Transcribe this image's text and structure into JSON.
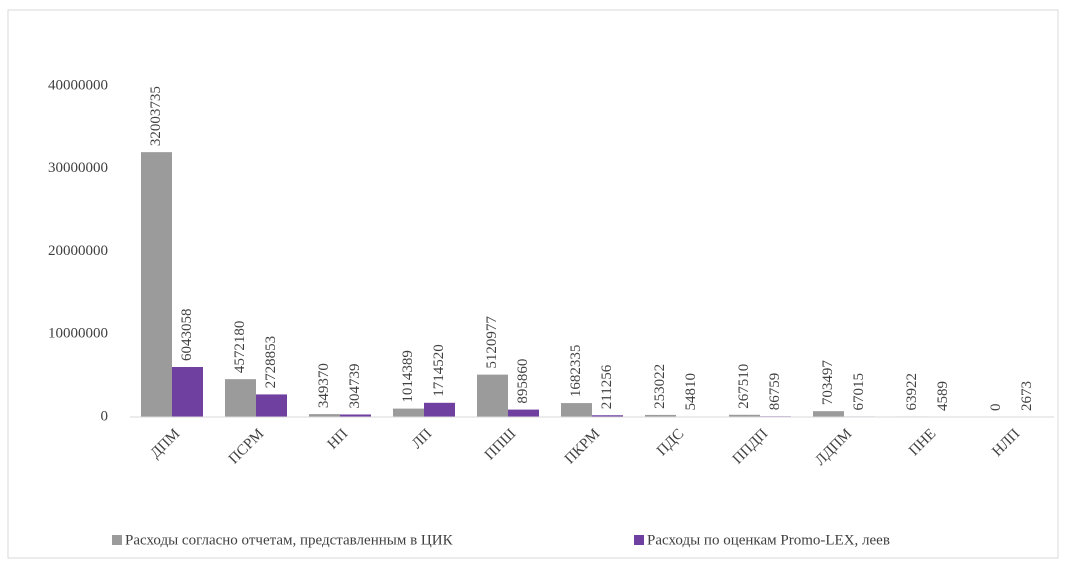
{
  "chart_data": {
    "type": "bar",
    "categories": [
      "ДПМ",
      "ПСРМ",
      "НП",
      "ЛП",
      "ППШ",
      "ПКРМ",
      "ПДС",
      "ППДП",
      "ЛДПМ",
      "ПНЕ",
      "НЛП"
    ],
    "series": [
      {
        "name": "Расходы согласно отчетам, представленным в ЦИК",
        "color": "#9b9b9b",
        "values": [
          32003735,
          4572180,
          349370,
          1014389,
          5120977,
          1682335,
          253022,
          267510,
          703497,
          63922,
          0
        ]
      },
      {
        "name": "Расходы по оценкам Promo-LEX, леев",
        "color": "#7040a0",
        "values": [
          6043058,
          2728853,
          304739,
          1714520,
          895860,
          211256,
          54810,
          86759,
          67015,
          4589,
          2673
        ]
      }
    ],
    "ylim": [
      0,
      45000000
    ],
    "yticks": [
      0,
      10000000,
      20000000,
      30000000,
      40000000
    ],
    "grid": false,
    "legend": "bottom"
  }
}
